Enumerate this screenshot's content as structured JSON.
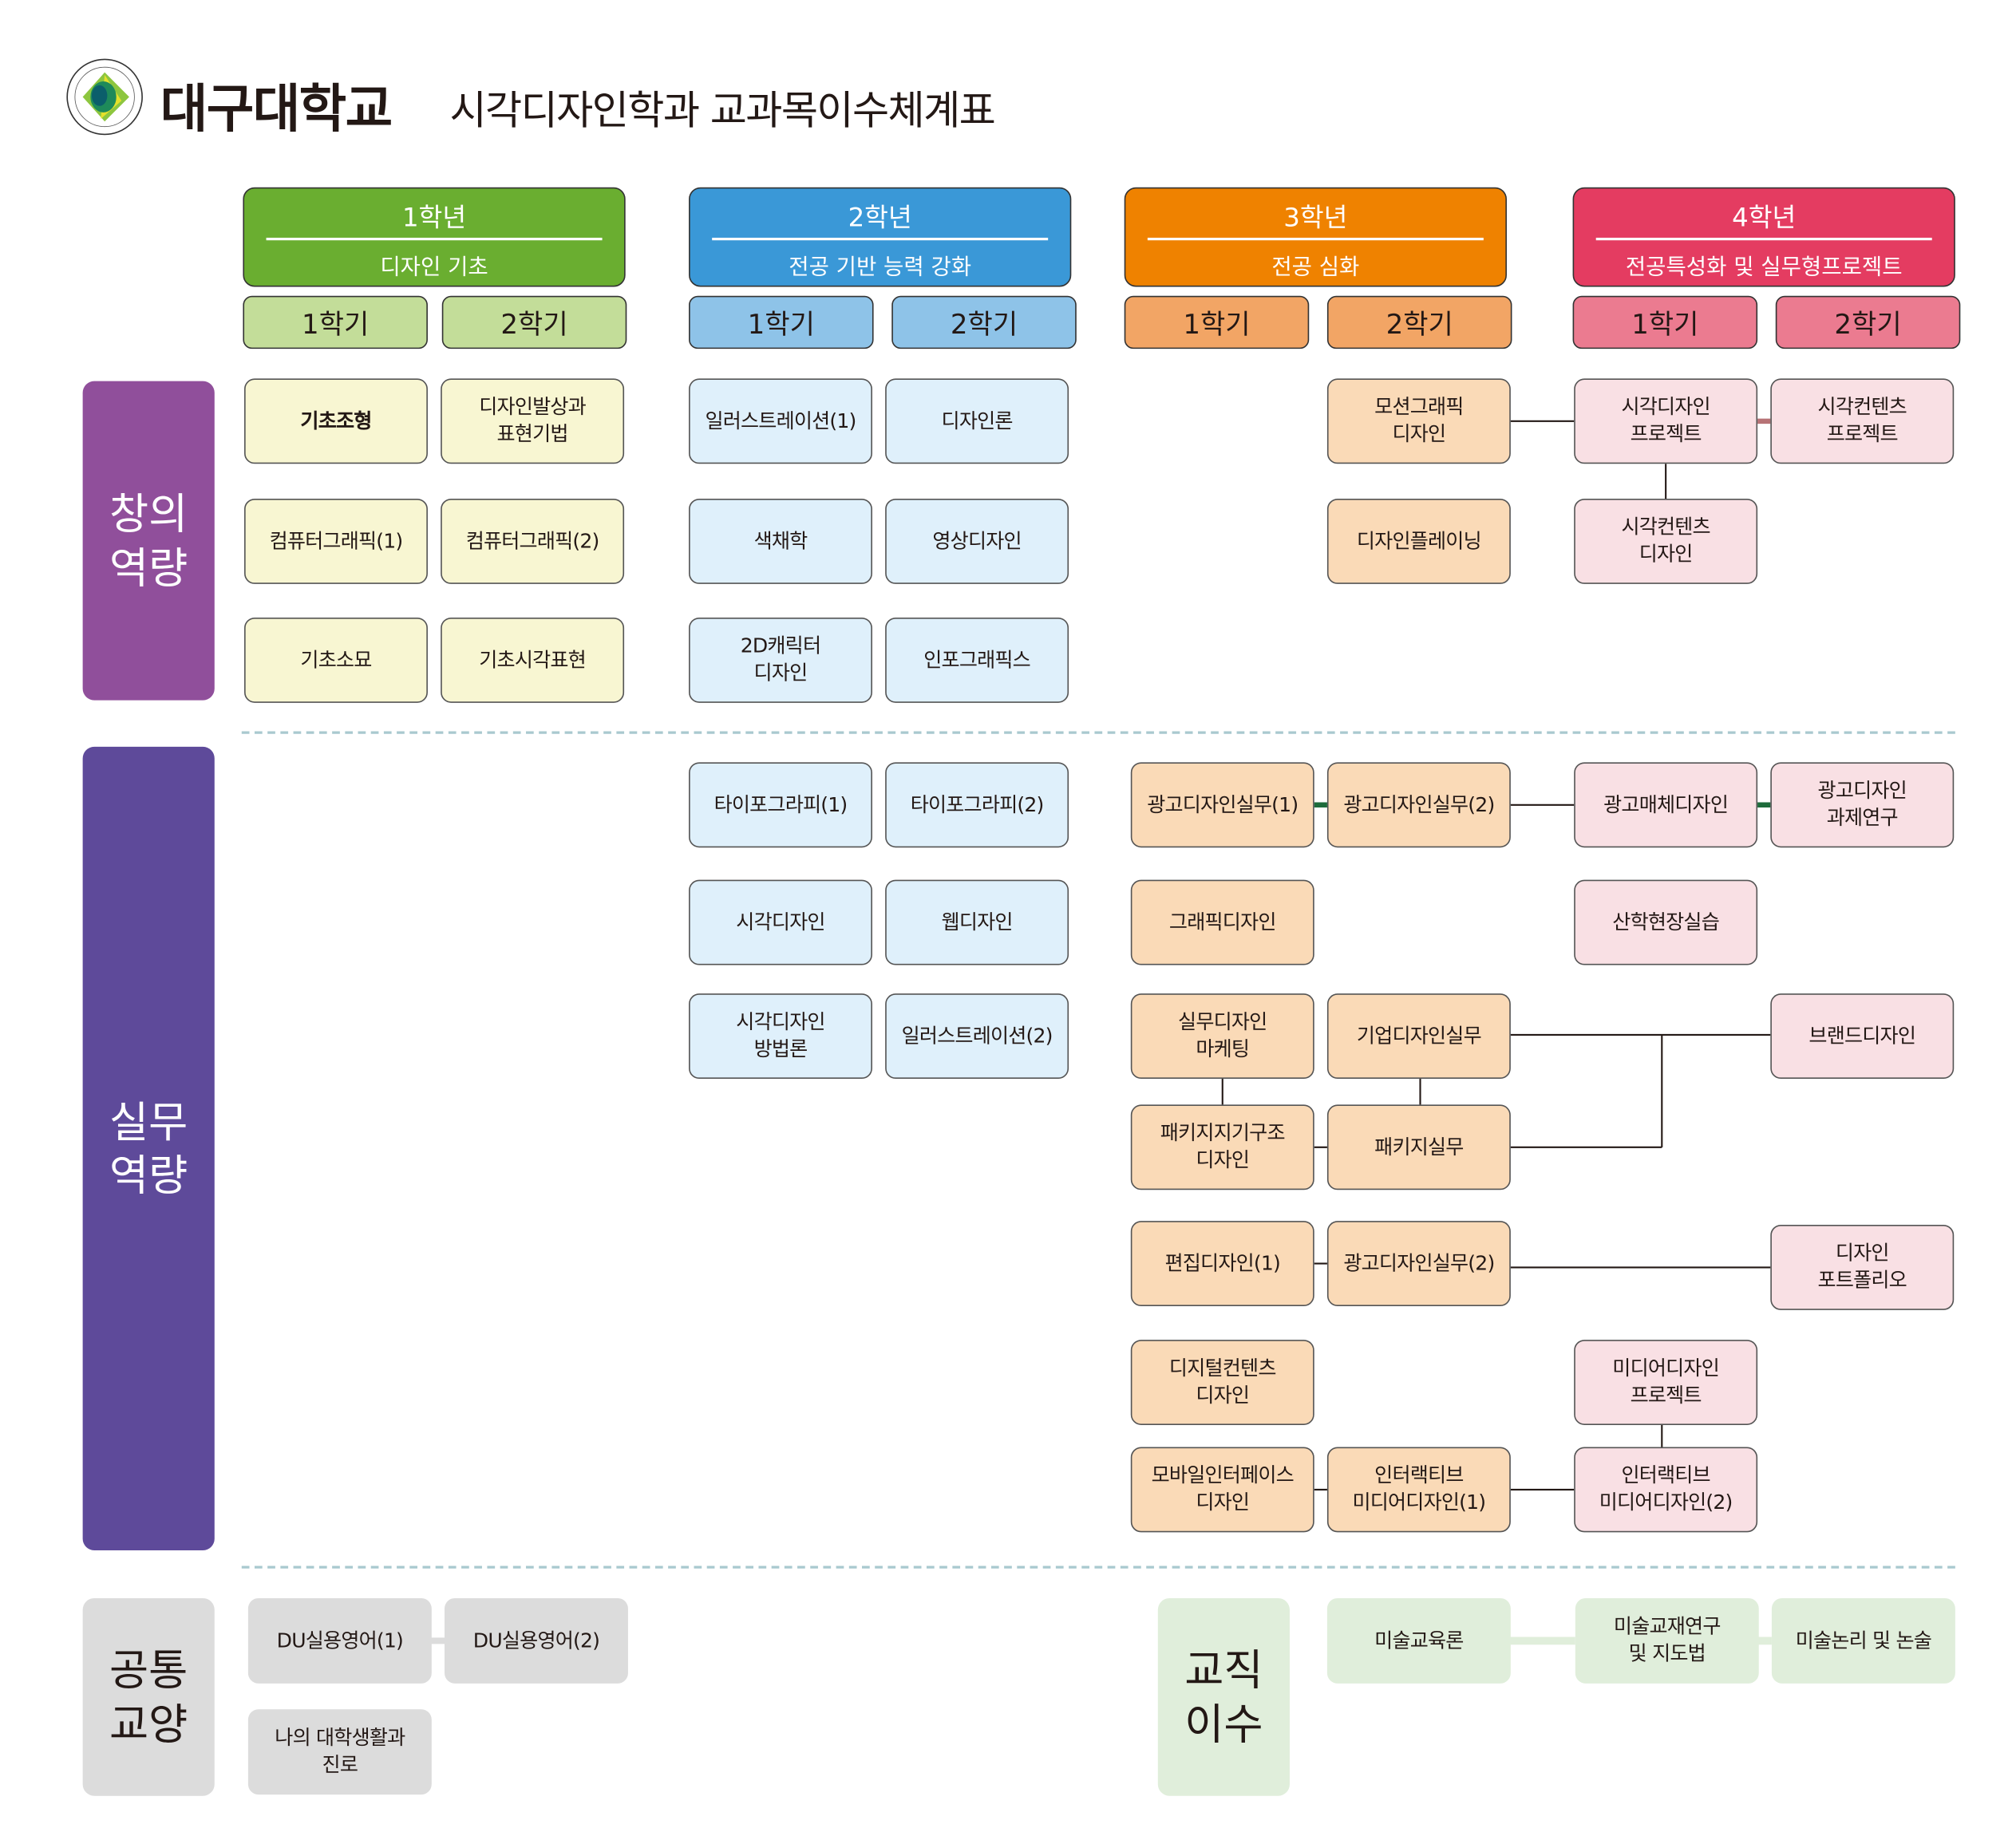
{
  "header": {
    "university": "대구대학교",
    "title": "시각디자인학과 교과목이수체계표",
    "logo_text": "대구대학교 DAEGU UNIVERSITY 1956"
  },
  "colors": {
    "year1": "#6aae30",
    "year1_sem": "#c3dd99",
    "year1_course": "#f8f6d2",
    "year2": "#3a98d7",
    "year2_sem": "#8ec3e8",
    "year2_course": "#dff0fb",
    "year3": "#ef8200",
    "year3_sem": "#f2a565",
    "year3_course": "#fadab7",
    "year4": "#e43c61",
    "year4_sem": "#eb7b90",
    "year4_course": "#f9e0e4",
    "creative": "#904f9b",
    "practical": "#5e4a9a",
    "general": "#dcdcdc",
    "teaching": "#e0eedb"
  },
  "years": [
    {
      "label": "1학년",
      "desc": "디자인 기초",
      "sem1": "1학기",
      "sem2": "2학기"
    },
    {
      "label": "2학년",
      "desc": "전공 기반 능력 강화",
      "sem1": "1학기",
      "sem2": "2학기"
    },
    {
      "label": "3학년",
      "desc": "전공 심화",
      "sem1": "1학기",
      "sem2": "2학기"
    },
    {
      "label": "4학년",
      "desc": "전공특성화 및 실무형프로젝트",
      "sem1": "1학기",
      "sem2": "2학기"
    }
  ],
  "sections": {
    "creative": "창의\n역량",
    "practical": "실무\n역량",
    "general": "공통\n교양",
    "teaching": "교직\n이수"
  },
  "creative_courses": [
    "기초조형",
    "디자인발상과\n표현기법",
    "컴퓨터그래픽(1)",
    "컴퓨터그래픽(2)",
    "기초소묘",
    "기초시각표현",
    "일러스트레이션(1)",
    "디자인론",
    "색채학",
    "영상디자인",
    "2D캐릭터\n디자인",
    "인포그래픽스",
    "모션그래픽\n디자인",
    "디자인플레이닝",
    "시각디자인\n프로젝트",
    "시각컨텐츠\n프로젝트",
    "시각컨텐츠\n디자인"
  ],
  "practical_courses": [
    "타이포그라피(1)",
    "타이포그라피(2)",
    "시각디자인",
    "웹디자인",
    "시각디자인\n방법론",
    "일러스트레이션(2)",
    "광고디자인실무(1)",
    "광고디자인실무(2)",
    "광고매체디자인",
    "광고디자인\n과제연구",
    "그래픽디자인",
    "산학현장실습",
    "실무디자인\n마케팅",
    "기업디자인실무",
    "브랜드디자인",
    "패키지지기구조\n디자인",
    "패키지실무",
    "편집디자인(1)",
    "광고디자인실무(2)",
    "디자인\n포트폴리오",
    "디지털컨텐츠\n디자인",
    "미디어디자인\n프로젝트",
    "모바일인터페이스\n디자인",
    "인터랙티브\n미디어디자인(1)",
    "인터랙티브\n미디어디자인(2)"
  ],
  "general_courses": [
    "DU실용영어(1)",
    "DU실용영어(2)",
    "나의 대학생활과\n진로"
  ],
  "teaching_courses": [
    "미술교육론",
    "미술교재연구\n및 지도법",
    "미술논리 및 논술"
  ]
}
